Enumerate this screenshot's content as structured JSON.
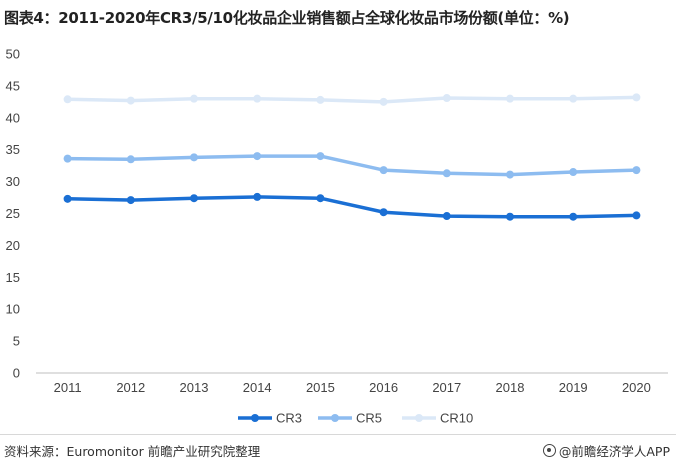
{
  "title": "图表4：2011-2020年CR3/5/10化妆品企业销售额占全球化妆品市场份额(单位：%)",
  "source": "资料来源：Euromonitor 前瞻产业研究院整理",
  "brand": "@前瞻经济学人APP",
  "colors": {
    "CR3": "#1a6fd4",
    "CR5": "#8dbcf0",
    "CR10": "#dbe8f7",
    "axis": "#bfbfbf"
  },
  "chart_data": {
    "type": "line",
    "title": "图表4：2011-2020年CR3/5/10化妆品企业销售额占全球化妆品市场份额(单位：%)",
    "xlabel": "",
    "ylabel": "",
    "ylim": [
      0,
      50
    ],
    "yticks": [
      "0",
      "5",
      "10",
      "15",
      "20",
      "25",
      "30",
      "35",
      "40",
      "45",
      "50"
    ],
    "categories": [
      "2011",
      "2012",
      "2013",
      "2014",
      "2015",
      "2016",
      "2017",
      "2018",
      "2019",
      "2020"
    ],
    "grid": false,
    "legend_position": "bottom",
    "series": [
      {
        "name": "CR3",
        "values": [
          27.3,
          27.1,
          27.4,
          27.6,
          27.4,
          25.2,
          24.6,
          24.5,
          24.5,
          24.7
        ]
      },
      {
        "name": "CR5",
        "values": [
          33.6,
          33.5,
          33.8,
          34.0,
          34.0,
          31.8,
          31.3,
          31.1,
          31.5,
          31.8
        ]
      },
      {
        "name": "CR10",
        "values": [
          42.9,
          42.7,
          43.0,
          43.0,
          42.8,
          42.5,
          43.1,
          43.0,
          43.0,
          43.2
        ]
      }
    ]
  }
}
